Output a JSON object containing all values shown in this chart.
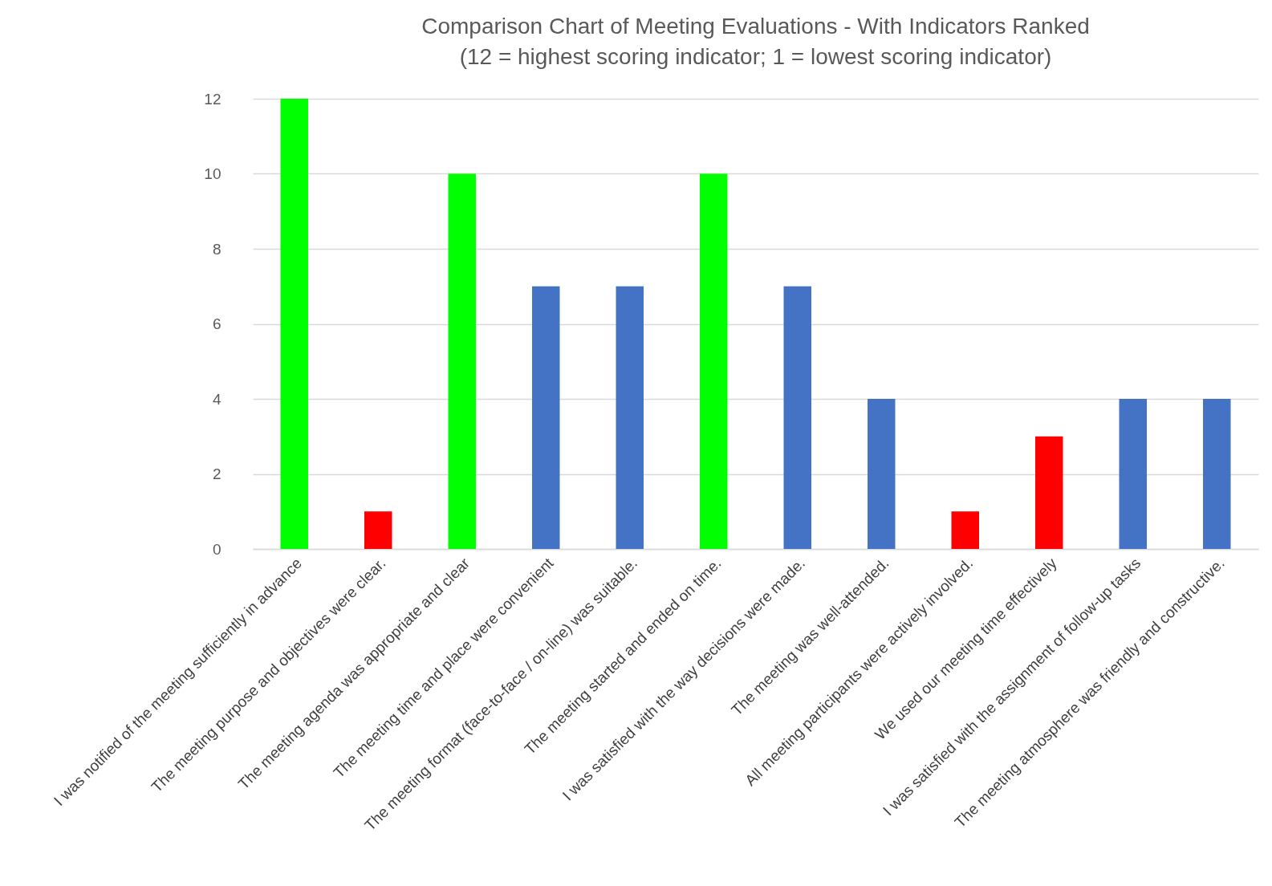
{
  "chart_data": {
    "type": "bar",
    "title": "Comparison Chart of Meeting Evaluations - With Indicators Ranked",
    "subtitle": "(12 = highest scoring indicator; 1 = lowest scoring indicator)",
    "categories": [
      "I was notified of the meeting sufficiently in advance",
      "The meeting purpose and objectives were clear.",
      "The meeting agenda was appropriate and clear",
      "The meeting time and place were convenient",
      "The meeting format (face-to-face / on-line) was suitable.",
      "The meeting started and ended on time.",
      "I was satisfied with the way decisions were made.",
      "The meeting was well-attended.",
      "All meeting participants were actively involved.",
      "We used our meeting time effectively",
      "I was satisfied with the assignment of follow-up tasks",
      "The meeting atmosphere was friendly and constructive."
    ],
    "values": [
      12,
      1,
      10,
      7,
      7,
      10,
      7,
      4,
      1,
      3,
      4,
      4
    ],
    "colors": [
      "#00ff00",
      "#ff0000",
      "#00ff00",
      "#4472c4",
      "#4472c4",
      "#00ff00",
      "#4472c4",
      "#4472c4",
      "#ff0000",
      "#ff0000",
      "#4472c4",
      "#4472c4"
    ],
    "ylim": [
      0,
      12
    ],
    "yticks": [
      0,
      2,
      4,
      6,
      8,
      10,
      12
    ],
    "grid": "y"
  }
}
